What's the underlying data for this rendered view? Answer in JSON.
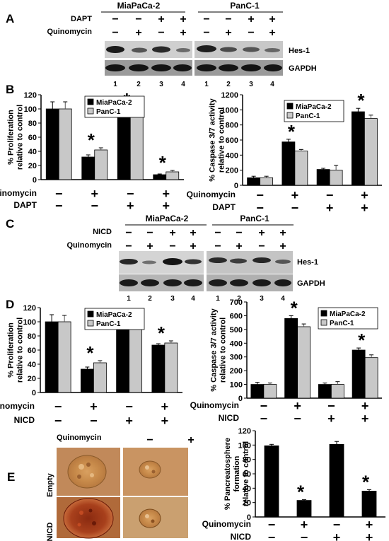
{
  "panels": {
    "A": {
      "letter": "A",
      "cell_lines": [
        "MiaPaCa-2",
        "PanC-1"
      ],
      "treatment_rows": [
        {
          "label": "DAPT",
          "signs": [
            "−",
            "−",
            "+",
            "+",
            "−",
            "−",
            "+",
            "+"
          ]
        },
        {
          "label": "Quinomycin",
          "signs": [
            "−",
            "+",
            "−",
            "+",
            "−",
            "+",
            "−",
            "+"
          ]
        }
      ],
      "bands": [
        "Hes-1",
        "GAPDH"
      ],
      "lanes": [
        "1",
        "2",
        "3",
        "4",
        "1",
        "2",
        "3",
        "4"
      ]
    },
    "C": {
      "letter": "C",
      "cell_lines": [
        "MiaPaCa-2",
        "PanC-1"
      ],
      "treatment_rows": [
        {
          "label": "NICD",
          "signs": [
            "−",
            "−",
            "+",
            "+",
            "−",
            "−",
            "+",
            "+"
          ]
        },
        {
          "label": "Quinomycin",
          "signs": [
            "−",
            "+",
            "−",
            "+",
            "−",
            "+",
            "−",
            "+"
          ]
        }
      ],
      "bands": [
        "Hes-1",
        "GAPDH"
      ],
      "lanes": [
        "1",
        "2",
        "3",
        "4",
        "1",
        "2",
        "3",
        "4"
      ]
    },
    "B": {
      "letter": "B"
    },
    "D": {
      "letter": "D"
    },
    "E": {
      "letter": "E",
      "treatment_label": "Quinomycin",
      "treatment_signs": [
        "−",
        "+"
      ],
      "row_labels": [
        "Empty",
        "NICD"
      ]
    }
  },
  "chart_data": [
    {
      "id": "B1",
      "type": "bar",
      "ylabel": [
        "% Proliferation",
        "relative to control"
      ],
      "ylim": [
        0,
        120
      ],
      "yticks": [
        0,
        20,
        40,
        60,
        80,
        100,
        120
      ],
      "legend": [
        "MiaPaCa-2",
        "PanC-1"
      ],
      "series": [
        {
          "name": "MiaPaCa-2",
          "color": "#000000",
          "values": [
            100,
            32,
            90,
            7
          ],
          "errors": [
            10,
            3,
            6,
            1
          ]
        },
        {
          "name": "PanC-1",
          "color": "#c8c8c8",
          "values": [
            100,
            42,
            92,
            11
          ],
          "errors": [
            10,
            3,
            10,
            2
          ]
        }
      ],
      "stars": [
        1,
        2,
        3
      ],
      "treatments": [
        {
          "label": "Quinomycin",
          "signs": [
            "−",
            "+",
            "−",
            "+"
          ]
        },
        {
          "label": "DAPT",
          "signs": [
            "−",
            "−",
            "+",
            "+"
          ]
        }
      ]
    },
    {
      "id": "B2",
      "type": "bar",
      "ylabel": [
        "% Caspase 3/7 activity",
        "relative to control"
      ],
      "ylim": [
        0,
        1200
      ],
      "yticks": [
        0,
        200,
        400,
        600,
        800,
        1000,
        1200
      ],
      "legend": [
        "MiaPaCa-2",
        "PanC-1"
      ],
      "series": [
        {
          "name": "MiaPaCa-2",
          "color": "#000000",
          "values": [
            100,
            575,
            210,
            975
          ],
          "errors": [
            20,
            35,
            15,
            45
          ]
        },
        {
          "name": "PanC-1",
          "color": "#c8c8c8",
          "values": [
            100,
            455,
            200,
            885
          ],
          "errors": [
            20,
            20,
            65,
            45
          ]
        }
      ],
      "stars": [
        1,
        3
      ],
      "treatments": [
        {
          "label": "Quinomycin",
          "signs": [
            "−",
            "+",
            "−",
            "+"
          ]
        },
        {
          "label": "DAPT",
          "signs": [
            "−",
            "−",
            "+",
            "+"
          ]
        }
      ]
    },
    {
      "id": "D1",
      "type": "bar",
      "ylabel": [
        "% Proliferation",
        "relative to control"
      ],
      "ylim": [
        0,
        120
      ],
      "yticks": [
        0,
        20,
        40,
        60,
        80,
        100,
        120
      ],
      "legend": [
        "MiaPaCa-2",
        "PanC-1"
      ],
      "series": [
        {
          "name": "MiaPaCa-2",
          "color": "#000000",
          "values": [
            100,
            33,
            101,
            67
          ],
          "errors": [
            10,
            3,
            4,
            2
          ]
        },
        {
          "name": "PanC-1",
          "color": "#c8c8c8",
          "values": [
            100,
            42,
            99,
            70
          ],
          "errors": [
            9,
            3,
            8,
            3
          ]
        }
      ],
      "stars": [
        1,
        3
      ],
      "treatments": [
        {
          "label": "Quinomycin",
          "signs": [
            "−",
            "+",
            "−",
            "+"
          ]
        },
        {
          "label": "NICD",
          "signs": [
            "−",
            "−",
            "+",
            "+"
          ]
        }
      ]
    },
    {
      "id": "D2",
      "type": "bar",
      "ylabel": [
        "% Caspase 3/7 activity",
        "relative to control"
      ],
      "ylim": [
        0,
        700
      ],
      "yticks": [
        0,
        100,
        200,
        300,
        400,
        500,
        600,
        700
      ],
      "legend": [
        "MiaPaCa-2",
        "PanC-1"
      ],
      "series": [
        {
          "name": "MiaPaCa-2",
          "color": "#000000",
          "values": [
            100,
            580,
            100,
            350
          ],
          "errors": [
            15,
            20,
            10,
            15
          ]
        },
        {
          "name": "PanC-1",
          "color": "#c8c8c8",
          "values": [
            100,
            520,
            100,
            295
          ],
          "errors": [
            10,
            20,
            20,
            20
          ]
        }
      ],
      "stars": [
        1,
        3
      ],
      "treatments": [
        {
          "label": "Quinomycin",
          "signs": [
            "−",
            "+",
            "−",
            "+"
          ]
        },
        {
          "label": "NICD",
          "signs": [
            "−",
            "−",
            "+",
            "+"
          ]
        }
      ]
    },
    {
      "id": "E1",
      "type": "bar",
      "ylabel": [
        "% Pancreatosphere",
        "formation",
        "relative to control"
      ],
      "ylim": [
        0,
        120
      ],
      "yticks": [
        0,
        20,
        40,
        60,
        80,
        100,
        120
      ],
      "legend": [],
      "series": [
        {
          "name": "",
          "color": "#000000",
          "values": [
            99,
            23,
            101,
            36
          ],
          "errors": [
            2,
            1,
            4,
            2
          ]
        }
      ],
      "stars": [
        1,
        3
      ],
      "treatments": [
        {
          "label": "Quinomycin",
          "signs": [
            "−",
            "+",
            "−",
            "+"
          ]
        },
        {
          "label": "NICD",
          "signs": [
            "−",
            "−",
            "+",
            "+"
          ]
        }
      ]
    }
  ]
}
